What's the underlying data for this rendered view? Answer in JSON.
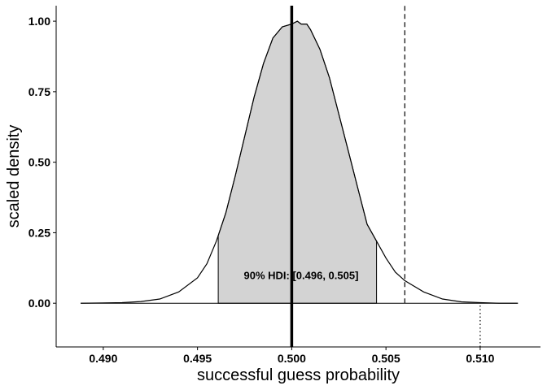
{
  "chart_data": {
    "type": "area",
    "xlabel": "successful guess probability",
    "ylabel": "scaled density",
    "xlim": [
      0.4875,
      0.5132
    ],
    "ylim": [
      -0.155,
      1.055
    ],
    "x_ticks": [
      0.49,
      0.495,
      0.5,
      0.505,
      0.51
    ],
    "x_tick_labels": [
      "0.490",
      "0.495",
      "0.500",
      "0.505",
      "0.510"
    ],
    "y_ticks": [
      0.0,
      0.25,
      0.5,
      0.75,
      1.0
    ],
    "y_tick_labels": [
      "0.00",
      "0.25",
      "0.50",
      "0.75",
      "1.00"
    ],
    "grid": false,
    "density": {
      "x": [
        0.4888,
        0.491,
        0.492,
        0.493,
        0.494,
        0.495,
        0.4955,
        0.496,
        0.4965,
        0.497,
        0.4975,
        0.498,
        0.4985,
        0.499,
        0.4995,
        0.5,
        0.5003,
        0.5005,
        0.5008,
        0.501,
        0.5015,
        0.502,
        0.5025,
        0.503,
        0.5035,
        0.504,
        0.5045,
        0.505,
        0.5055,
        0.506,
        0.507,
        0.508,
        0.509,
        0.51,
        0.511,
        0.512
      ],
      "y": [
        0.0,
        0.002,
        0.006,
        0.015,
        0.04,
        0.09,
        0.14,
        0.22,
        0.32,
        0.45,
        0.59,
        0.73,
        0.85,
        0.94,
        0.98,
        0.99,
        1.0,
        0.99,
        0.99,
        0.97,
        0.9,
        0.8,
        0.67,
        0.54,
        0.41,
        0.28,
        0.22,
        0.16,
        0.11,
        0.08,
        0.04,
        0.015,
        0.005,
        0.002,
        0.0,
        0.0
      ]
    },
    "hdi": {
      "label": "90% HDI: [0.496, 0.505]",
      "lower": 0.4961,
      "upper": 0.5045,
      "label_x": 0.5005,
      "label_y": 0.1,
      "fill": "#d3d3d3"
    },
    "reference_lines": [
      {
        "x": 0.5,
        "style": "solid-thick",
        "y_from": -0.155,
        "y_to": 1.055
      },
      {
        "x": 0.506,
        "style": "dashed",
        "y_from": 0.0,
        "y_to": 1.055
      },
      {
        "x": 0.51,
        "style": "dotted",
        "y_from": -0.155,
        "y_to": 0.0
      }
    ]
  }
}
